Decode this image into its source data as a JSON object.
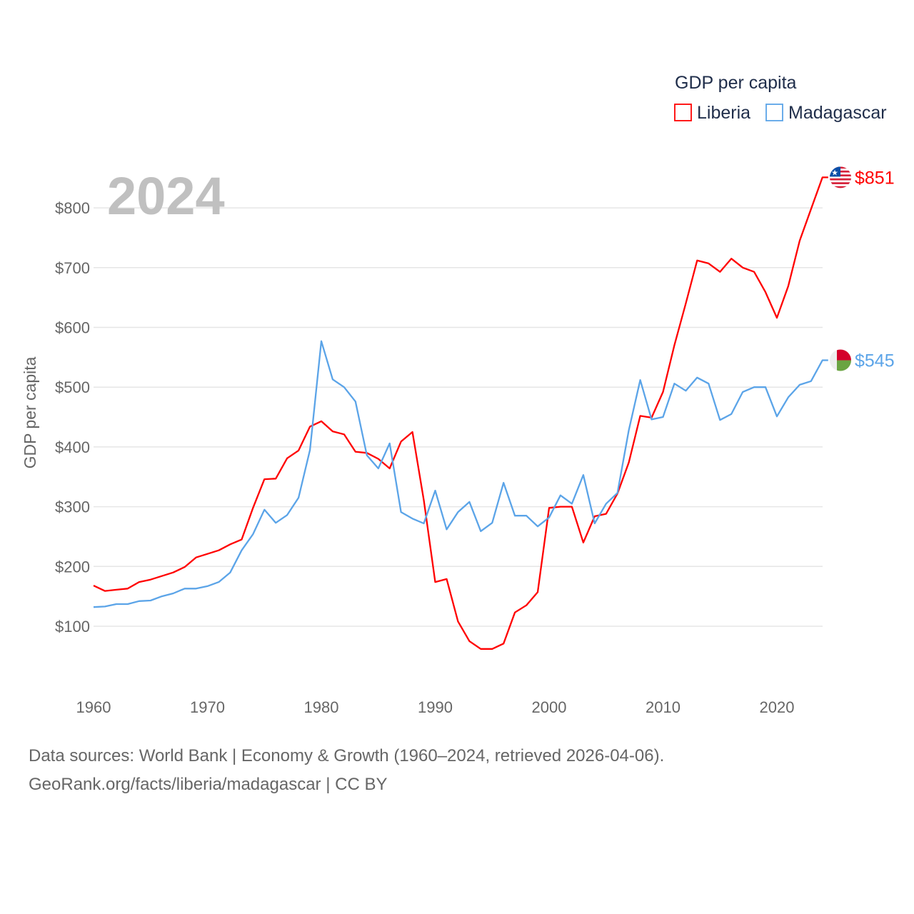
{
  "chart_data": {
    "type": "line",
    "title": "GDP per capita",
    "year_label": "2024",
    "ylabel": "GDP per capita",
    "xlabel": "",
    "xlim": [
      1960,
      2024
    ],
    "ylim": [
      0,
      900
    ],
    "x_ticks": [
      1960,
      1970,
      1980,
      1990,
      2000,
      2010,
      2020
    ],
    "y_ticks": [
      100,
      200,
      300,
      400,
      500,
      600,
      700,
      800
    ],
    "y_tick_labels": [
      "$100",
      "$200",
      "$300",
      "$400",
      "$500",
      "$600",
      "$700",
      "$800"
    ],
    "grid": true,
    "legend_position": "top-right",
    "x": [
      1960,
      1961,
      1962,
      1963,
      1964,
      1965,
      1966,
      1967,
      1968,
      1969,
      1970,
      1971,
      1972,
      1973,
      1974,
      1975,
      1976,
      1977,
      1978,
      1979,
      1980,
      1981,
      1982,
      1983,
      1984,
      1985,
      1986,
      1987,
      1988,
      1989,
      1990,
      1991,
      1992,
      1993,
      1994,
      1995,
      1996,
      1997,
      1998,
      1999,
      2000,
      2001,
      2002,
      2003,
      2004,
      2005,
      2006,
      2007,
      2008,
      2009,
      2010,
      2011,
      2012,
      2013,
      2014,
      2015,
      2016,
      2017,
      2018,
      2019,
      2020,
      2021,
      2022,
      2023,
      2024
    ],
    "series": [
      {
        "name": "Liberia",
        "color": "#ff0000",
        "end_label": "$851",
        "values": [
          168,
          159,
          161,
          163,
          174,
          178,
          184,
          190,
          199,
          215,
          221,
          227,
          237,
          245,
          298,
          346,
          347,
          381,
          394,
          434,
          443,
          426,
          421,
          392,
          390,
          380,
          364,
          409,
          425,
          311,
          174,
          179,
          108,
          75,
          62,
          62,
          71,
          123,
          135,
          157,
          298,
          300,
          300,
          240,
          284,
          288,
          322,
          374,
          452,
          449,
          492,
          570,
          640,
          712,
          707,
          693,
          715,
          700,
          693,
          659,
          616,
          669,
          745,
          798,
          851
        ]
      },
      {
        "name": "Madagascar",
        "color": "#5ba4e8",
        "end_label": "$545",
        "values": [
          132,
          133,
          137,
          137,
          142,
          143,
          150,
          155,
          163,
          163,
          167,
          174,
          190,
          227,
          254,
          295,
          273,
          286,
          315,
          395,
          577,
          513,
          500,
          476,
          386,
          364,
          406,
          291,
          280,
          272,
          327,
          262,
          291,
          308,
          259,
          273,
          340,
          285,
          285,
          267,
          282,
          319,
          305,
          353,
          272,
          305,
          323,
          428,
          512,
          446,
          450,
          506,
          494,
          516,
          506,
          445,
          455,
          492,
          500,
          500,
          451,
          483,
          504,
          510,
          545
        ]
      }
    ]
  },
  "footer": {
    "line1": "Data sources: World Bank | Economy & Growth (1960–2024, retrieved 2026-04-06).",
    "line2": "GeoRank.org/facts/liberia/madagascar | CC BY"
  }
}
